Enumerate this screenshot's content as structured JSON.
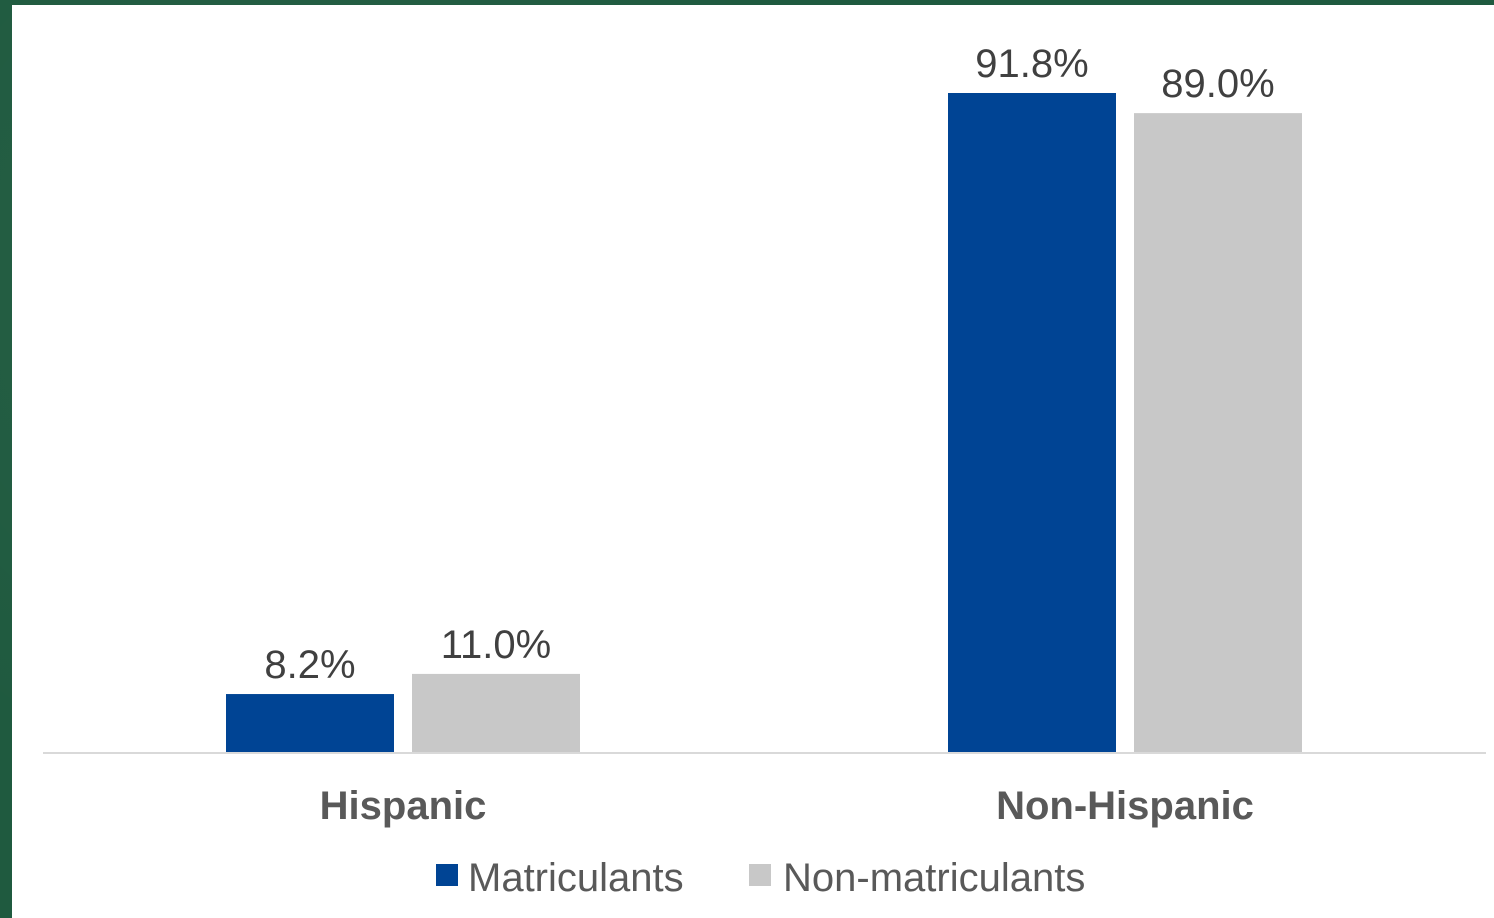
{
  "chart_data": {
    "type": "bar",
    "categories": [
      "Hispanic",
      "Non-Hispanic"
    ],
    "series": [
      {
        "name": "Matriculants",
        "values": [
          8.2,
          91.8
        ],
        "labels": [
          "8.2%",
          "91.8%"
        ],
        "color": "#004494"
      },
      {
        "name": "Non-matriculants",
        "values": [
          11.0,
          89.0
        ],
        "labels": [
          "11.0%",
          "89.0%"
        ],
        "color": "#c8c8c8"
      }
    ],
    "title": "",
    "xlabel": "",
    "ylabel": "",
    "ylim": [
      0,
      100
    ],
    "grid": false,
    "legend_position": "bottom"
  }
}
